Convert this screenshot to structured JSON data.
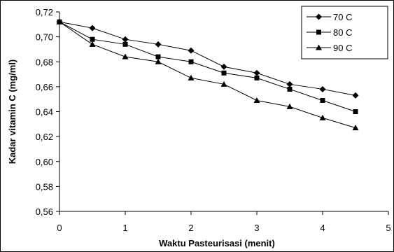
{
  "chart_data": {
    "type": "line",
    "xlabel": "Waktu Pasteurisasi (menit)",
    "ylabel": "Kadar vitamin C (mg/ml)",
    "xlim": [
      0,
      5
    ],
    "ylim": [
      0.56,
      0.72
    ],
    "x_ticks": [
      0,
      1,
      2,
      3,
      4,
      5
    ],
    "x_tick_labels": [
      "0",
      "1",
      "2",
      "3",
      "4",
      "5"
    ],
    "y_ticks": [
      0.56,
      0.58,
      0.6,
      0.62,
      0.64,
      0.66,
      0.68,
      0.7,
      0.72
    ],
    "y_tick_labels": [
      "0,56",
      "0,58",
      "0,60",
      "0,62",
      "0,64",
      "0,66",
      "0,68",
      "0,70",
      "0,72"
    ],
    "grid": false,
    "legend_position": "top-right",
    "x": [
      0,
      0.5,
      1,
      1.5,
      2,
      2.5,
      3,
      3.5,
      4,
      4.5
    ],
    "series": [
      {
        "name": "70 C",
        "marker": "diamond",
        "values": [
          0.712,
          0.707,
          0.698,
          0.694,
          0.689,
          0.676,
          0.671,
          0.662,
          0.658,
          0.653
        ]
      },
      {
        "name": "80 C",
        "marker": "square",
        "values": [
          0.712,
          0.698,
          0.694,
          0.684,
          0.68,
          0.671,
          0.667,
          0.658,
          0.649,
          0.64
        ]
      },
      {
        "name": "90 C",
        "marker": "triangle",
        "values": [
          0.712,
          0.694,
          0.684,
          0.68,
          0.667,
          0.662,
          0.649,
          0.644,
          0.635,
          0.627
        ]
      }
    ]
  }
}
